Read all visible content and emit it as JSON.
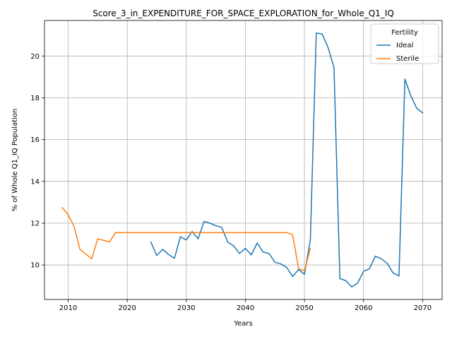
{
  "chart_data": {
    "type": "line",
    "title": "Score_3_in_EXPENDITURE_FOR_SPACE_EXPLORATION_for_Whole_Q1_IQ",
    "xlabel": "Years",
    "ylabel": "% of Whole Q1_IQ Population",
    "xlim": [
      2006,
      2073.3
    ],
    "ylim": [
      8.35,
      21.7
    ],
    "xticks": [
      2010,
      2020,
      2030,
      2040,
      2050,
      2060,
      2070
    ],
    "yticks": [
      10,
      12,
      14,
      16,
      18,
      20
    ],
    "grid": true,
    "legend": {
      "title": "Fertility",
      "placement": "top-right"
    },
    "series": [
      {
        "name": "Ideal",
        "color": "#1f77b4",
        "x": [
          2024,
          2025,
          2026,
          2027,
          2028,
          2029,
          2030,
          2031,
          2032,
          2033,
          2034,
          2035,
          2036,
          2037,
          2038,
          2039,
          2040,
          2041,
          2042,
          2043,
          2044,
          2045,
          2046,
          2047,
          2048,
          2049,
          2050,
          2051,
          2052,
          2053,
          2054,
          2055,
          2056,
          2057,
          2058,
          2059,
          2060,
          2061,
          2062,
          2063,
          2064,
          2065,
          2066,
          2067,
          2068,
          2069,
          2070
        ],
        "y": [
          11.1,
          10.45,
          10.75,
          10.5,
          10.32,
          11.35,
          11.2,
          11.6,
          11.25,
          12.08,
          12.0,
          11.88,
          11.8,
          11.1,
          10.92,
          10.55,
          10.8,
          10.48,
          11.05,
          10.62,
          10.55,
          10.13,
          10.05,
          9.88,
          9.45,
          9.78,
          9.55,
          11.2,
          21.1,
          21.05,
          20.4,
          19.45,
          9.35,
          9.25,
          8.95,
          9.13,
          9.7,
          9.82,
          10.42,
          10.3,
          10.08,
          9.62,
          9.48,
          18.9,
          18.1,
          17.5,
          17.28
        ]
      },
      {
        "name": "Sterile",
        "color": "#ff7f0e",
        "x": [
          2009,
          2010,
          2011,
          2012,
          2013,
          2014,
          2015,
          2016,
          2017,
          2018,
          2019,
          2020,
          2021,
          2022,
          2023,
          2024,
          2025,
          2026,
          2027,
          2028,
          2029,
          2030,
          2031,
          2032,
          2033,
          2034,
          2035,
          2036,
          2037,
          2038,
          2039,
          2040,
          2041,
          2042,
          2043,
          2044,
          2045,
          2046,
          2047,
          2048,
          2049,
          2050,
          2051
        ],
        "y": [
          12.75,
          12.4,
          11.85,
          10.75,
          10.52,
          10.3,
          11.25,
          11.18,
          11.1,
          11.55,
          11.55,
          11.55,
          11.55,
          11.55,
          11.55,
          11.55,
          11.55,
          11.55,
          11.55,
          11.55,
          11.55,
          11.55,
          11.55,
          11.55,
          11.55,
          11.55,
          11.55,
          11.55,
          11.55,
          11.55,
          11.55,
          11.55,
          11.55,
          11.55,
          11.55,
          11.55,
          11.55,
          11.55,
          11.55,
          11.45,
          9.82,
          9.72,
          10.8
        ]
      }
    ]
  }
}
